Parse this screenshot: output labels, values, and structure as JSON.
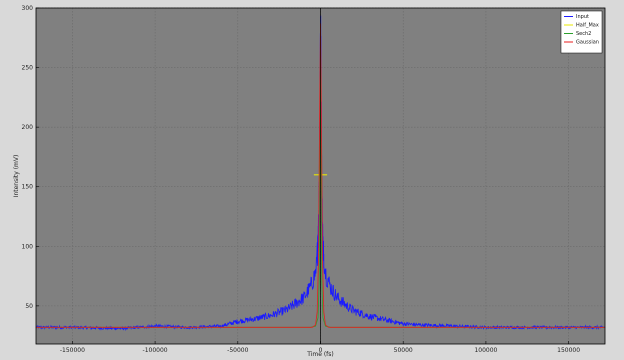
{
  "chart_data": {
    "type": "line",
    "title": "",
    "xlabel": "Time (fs)",
    "ylabel": "Intensity (mV)",
    "xlim": [
      -172000,
      172000
    ],
    "ylim": [
      18,
      300
    ],
    "xticks": [
      -150000,
      -100000,
      -50000,
      0,
      50000,
      100000,
      150000
    ],
    "xtick_labels": [
      "-150000",
      "-100000",
      "-50000",
      "0",
      "50000",
      "100000",
      "150000"
    ],
    "yticks": [
      50,
      100,
      150,
      200,
      250,
      300
    ],
    "ytick_labels": [
      "50",
      "100",
      "150",
      "200",
      "250",
      "300"
    ],
    "grid": true,
    "background_color": "#808080",
    "legend_position": "top-right",
    "baseline": 32,
    "series": [
      {
        "name": "Input",
        "color": "#1a1aff",
        "x": [
          -172000,
          -150000,
          -120000,
          -100000,
          -80000,
          -60000,
          -50000,
          -40000,
          -30000,
          -20000,
          -15000,
          -10000,
          -6000,
          -3000,
          -1500,
          -800,
          0,
          800,
          1500,
          3000,
          6000,
          10000,
          15000,
          20000,
          30000,
          40000,
          50000,
          60000,
          80000,
          100000,
          120000,
          150000,
          172000
        ],
        "values": [
          32,
          32,
          31,
          33,
          32,
          33,
          37,
          39,
          42,
          47,
          52,
          57,
          66,
          78,
          100,
          140,
          289,
          140,
          100,
          78,
          66,
          57,
          51,
          46,
          41,
          38,
          35,
          34,
          33,
          32,
          32,
          32,
          32
        ]
      },
      {
        "name": "Half_Max",
        "color": "#e8e800",
        "x": [
          -4000,
          4000
        ],
        "values": [
          160,
          160
        ]
      },
      {
        "name": "Sech2",
        "color": "#2ca02c",
        "x": [
          -172000,
          -6000,
          -3000,
          -1500,
          -800,
          -400,
          0,
          400,
          800,
          1500,
          3000,
          6000,
          172000
        ],
        "values": [
          32,
          32,
          33,
          40,
          70,
          150,
          285,
          150,
          70,
          40,
          33,
          32,
          32
        ]
      },
      {
        "name": "Gaussian",
        "color": "#e81e1e",
        "x": [
          -172000,
          -5000,
          -3000,
          -2000,
          -1200,
          -600,
          0,
          600,
          1200,
          2000,
          3000,
          5000,
          172000
        ],
        "values": [
          32,
          32,
          34,
          45,
          90,
          200,
          287,
          200,
          90,
          45,
          34,
          32,
          32
        ]
      }
    ],
    "vertical_marker": {
      "x": 0,
      "color": "#000000"
    }
  }
}
